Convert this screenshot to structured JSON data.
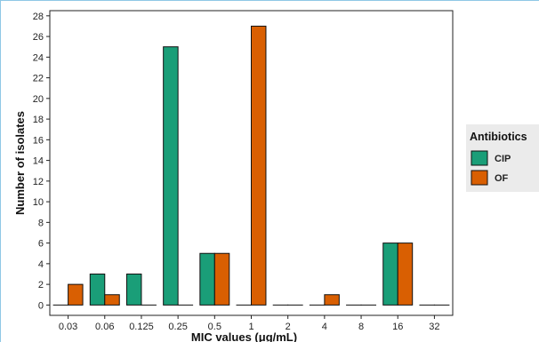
{
  "chart_data": {
    "type": "bar",
    "xlabel": "MIC values (μg/mL)",
    "ylabel": "Number of isolates",
    "categories": [
      "0.03",
      "0.06",
      "0.125",
      "0.25",
      "0.5",
      "1",
      "2",
      "4",
      "8",
      "16",
      "32"
    ],
    "series": [
      {
        "name": "CIP",
        "color": "#1a9e78",
        "values": [
          0,
          3,
          3,
          25,
          5,
          0,
          0,
          0,
          0,
          6,
          0
        ]
      },
      {
        "name": "OF",
        "color": "#d95f02",
        "values": [
          2,
          1,
          0,
          0,
          5,
          27,
          0,
          1,
          0,
          6,
          0
        ]
      }
    ],
    "ylim": [
      -1,
      28.5
    ],
    "yticks": [
      0,
      2,
      4,
      6,
      8,
      10,
      12,
      14,
      16,
      18,
      20,
      22,
      24,
      26,
      28
    ],
    "grid": false,
    "legend": {
      "title": "Antibiotics",
      "position": "right",
      "items": [
        "CIP",
        "OF"
      ]
    }
  }
}
